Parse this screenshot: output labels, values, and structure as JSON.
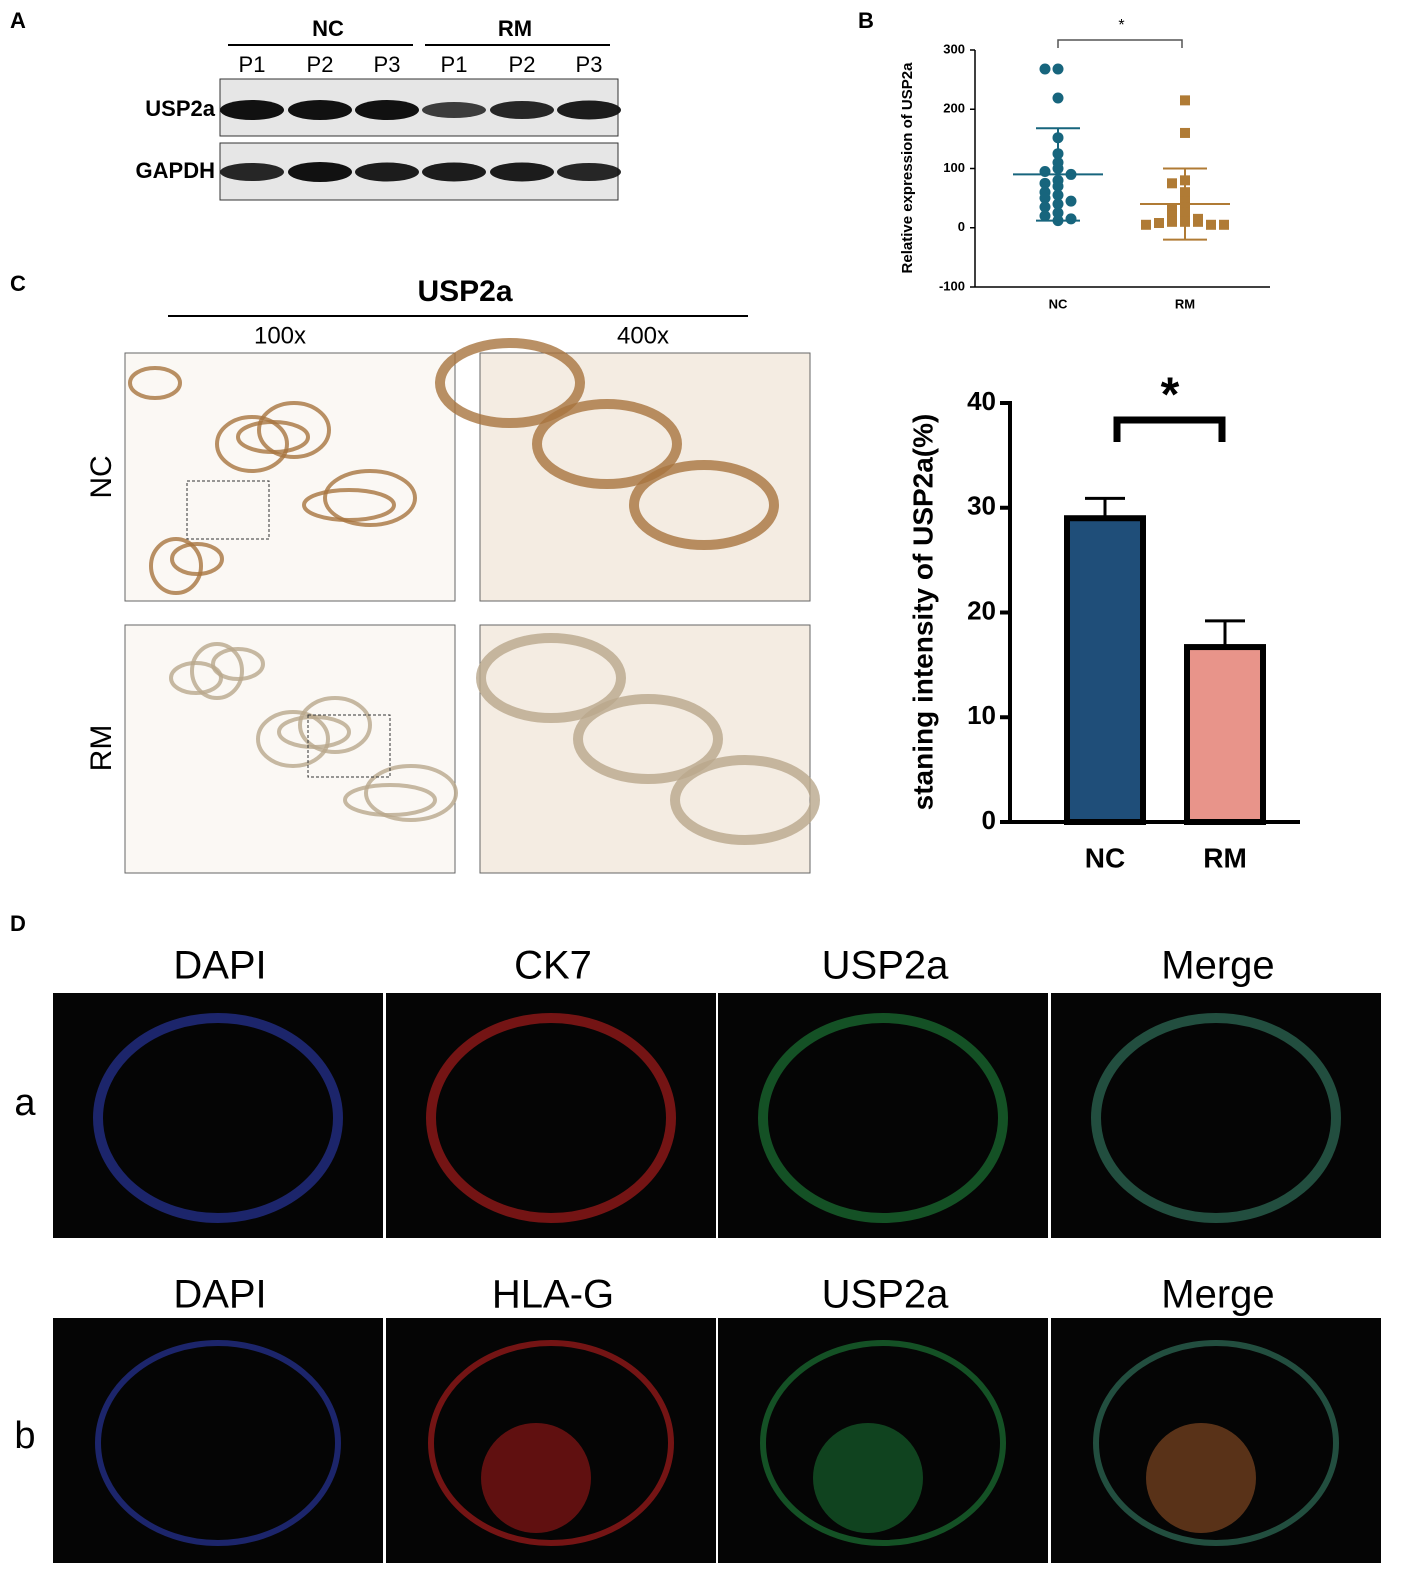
{
  "panel_labels": [
    "A",
    "B",
    "C",
    "D"
  ],
  "blot": {
    "groups": [
      "NC",
      "RM"
    ],
    "lanes": [
      "P1",
      "P2",
      "P3",
      "P1",
      "P2",
      "P3"
    ],
    "rows": [
      "USP2a",
      "GAPDH"
    ]
  },
  "ihc": {
    "title": "USP2a",
    "magnifications": [
      "100x",
      "400x"
    ],
    "rows": [
      "NC",
      "RM"
    ]
  },
  "immunofluorescence": {
    "rows": [
      {
        "label": "a",
        "columns": [
          "DAPI",
          "CK7",
          "USP2a",
          "Merge"
        ]
      },
      {
        "label": "b",
        "columns": [
          "DAPI",
          "HLA-G",
          "USP2a",
          "Merge"
        ]
      }
    ]
  },
  "chart_data": [
    {
      "type": "scatter",
      "y_label": "Relative expression of USP2a",
      "categories": [
        "NC",
        "RM"
      ],
      "series": [
        {
          "color": "#17657d",
          "values": [
            268,
            268,
            219,
            152,
            125,
            110,
            100,
            95,
            90,
            80,
            75,
            70,
            60,
            55,
            50,
            45,
            40,
            35,
            25,
            20,
            15,
            12
          ]
        },
        {
          "color": "#b07b35",
          "values": [
            215,
            160,
            80,
            75,
            60,
            45,
            35,
            30,
            25,
            20,
            15,
            10,
            10,
            10,
            8,
            5,
            5,
            5
          ]
        }
      ],
      "means": [
        90,
        40
      ],
      "sd": [
        78,
        60
      ],
      "ylim": [
        -100,
        300
      ],
      "yticks": [
        -100,
        0,
        100,
        200,
        300
      ],
      "significance": "*"
    },
    {
      "type": "bar",
      "y_label": "staning intensity of USP2a(%)",
      "categories": [
        "NC",
        "RM"
      ],
      "values": [
        29,
        16.7
      ],
      "errors": [
        1.9,
        2.5
      ],
      "colors": [
        "#1f4e79",
        "#e8948a"
      ],
      "ylim": [
        0,
        40
      ],
      "yticks": [
        0,
        10,
        20,
        30,
        40
      ],
      "significance": "*"
    }
  ]
}
